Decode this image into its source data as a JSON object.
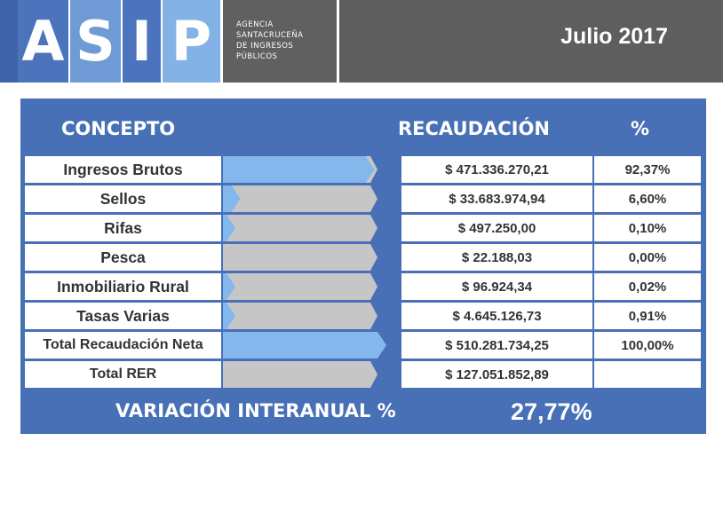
{
  "header": {
    "logo_letters": [
      "A",
      "S",
      "I",
      "P"
    ],
    "agency_lines": [
      "AGENCIA",
      "SANTACRUCEÑA",
      "DE INGRESOS",
      "PÚBLICOS"
    ],
    "date": "Julio 2017"
  },
  "table": {
    "col_concepto": "CONCEPTO",
    "col_recaudacion": "RECAUDACIÓN",
    "col_pct": "%",
    "rows": [
      {
        "label": "Ingresos Brutos",
        "amount": "$ 471.336.270,21",
        "pct": "92,37%",
        "share": 0.9237
      },
      {
        "label": "Sellos",
        "amount": "$ 33.683.974,94",
        "pct": "6,60%",
        "share": 0.066
      },
      {
        "label": "Rifas",
        "amount": "$ 497.250,00",
        "pct": "0,10%",
        "share": 0.001
      },
      {
        "label": "Pesca",
        "amount": "$ 22.188,03",
        "pct": "0,00%",
        "share": 0.0
      },
      {
        "label": "Inmobiliario Rural",
        "amount": "$ 96.924,34",
        "pct": "0,02%",
        "share": 0.0002
      },
      {
        "label": "Tasas Varias",
        "amount": "$ 4.645.126,73",
        "pct": "0,91%",
        "share": 0.0091
      },
      {
        "label": "Total Recaudación Neta",
        "amount": "$ 510.281.734,25",
        "pct": "100,00%",
        "share": 1.0
      },
      {
        "label": "Total RER",
        "amount": "$ 127.051.852,89",
        "pct": "",
        "share": 0.0
      }
    ],
    "footer_label": "VARIACIÓN INTERANUAL %",
    "footer_value": "27,77%"
  },
  "colors": {
    "bar_fill": "#84b8ec",
    "bar_empty": "#c6c6c6",
    "panel": "#4770b6"
  }
}
